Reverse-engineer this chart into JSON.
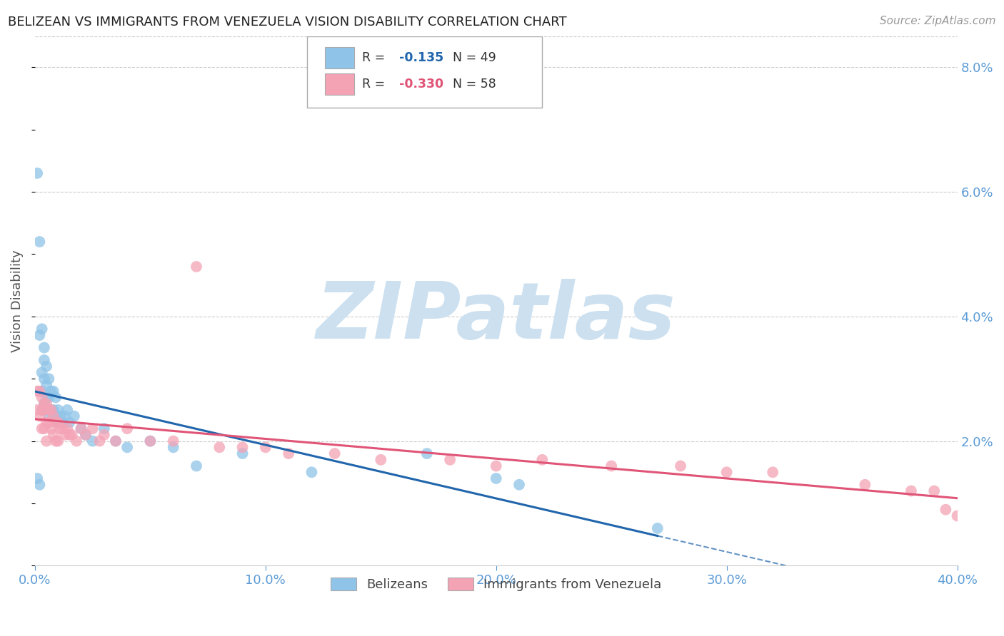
{
  "title": "BELIZEAN VS IMMIGRANTS FROM VENEZUELA VISION DISABILITY CORRELATION CHART",
  "source": "Source: ZipAtlas.com",
  "ylabel_left": "Vision Disability",
  "x_min": 0.0,
  "x_max": 0.4,
  "y_min": 0.0,
  "y_max": 0.085,
  "right_yticks": [
    0.02,
    0.04,
    0.06,
    0.08
  ],
  "right_yticklabels": [
    "2.0%",
    "4.0%",
    "6.0%",
    "8.0%"
  ],
  "x_ticks": [
    0.0,
    0.1,
    0.2,
    0.3,
    0.4
  ],
  "x_ticklabels": [
    "0.0%",
    "10.0%",
    "20.0%",
    "30.0%",
    "40.0%"
  ],
  "blue_x": [
    0.001,
    0.001,
    0.002,
    0.002,
    0.002,
    0.003,
    0.003,
    0.003,
    0.003,
    0.004,
    0.004,
    0.004,
    0.004,
    0.005,
    0.005,
    0.005,
    0.005,
    0.006,
    0.006,
    0.006,
    0.007,
    0.007,
    0.008,
    0.008,
    0.009,
    0.009,
    0.01,
    0.01,
    0.011,
    0.012,
    0.013,
    0.014,
    0.015,
    0.017,
    0.02,
    0.022,
    0.025,
    0.03,
    0.035,
    0.04,
    0.05,
    0.06,
    0.07,
    0.09,
    0.12,
    0.17,
    0.2,
    0.21,
    0.27
  ],
  "blue_y": [
    0.063,
    0.014,
    0.052,
    0.037,
    0.013,
    0.038,
    0.031,
    0.028,
    0.025,
    0.035,
    0.033,
    0.03,
    0.026,
    0.032,
    0.029,
    0.027,
    0.025,
    0.03,
    0.027,
    0.024,
    0.028,
    0.025,
    0.028,
    0.025,
    0.027,
    0.024,
    0.025,
    0.023,
    0.024,
    0.023,
    0.024,
    0.025,
    0.023,
    0.024,
    0.022,
    0.021,
    0.02,
    0.022,
    0.02,
    0.019,
    0.02,
    0.019,
    0.016,
    0.018,
    0.015,
    0.018,
    0.014,
    0.013,
    0.006
  ],
  "pink_x": [
    0.001,
    0.001,
    0.002,
    0.002,
    0.003,
    0.003,
    0.003,
    0.004,
    0.004,
    0.004,
    0.005,
    0.005,
    0.005,
    0.006,
    0.006,
    0.007,
    0.007,
    0.008,
    0.008,
    0.009,
    0.009,
    0.01,
    0.01,
    0.011,
    0.012,
    0.013,
    0.014,
    0.015,
    0.016,
    0.018,
    0.02,
    0.022,
    0.025,
    0.028,
    0.03,
    0.035,
    0.04,
    0.05,
    0.06,
    0.07,
    0.08,
    0.09,
    0.1,
    0.11,
    0.13,
    0.15,
    0.18,
    0.2,
    0.22,
    0.25,
    0.28,
    0.3,
    0.32,
    0.36,
    0.38,
    0.39,
    0.395,
    0.4
  ],
  "pink_y": [
    0.028,
    0.025,
    0.028,
    0.024,
    0.027,
    0.025,
    0.022,
    0.026,
    0.025,
    0.022,
    0.026,
    0.023,
    0.02,
    0.025,
    0.023,
    0.025,
    0.022,
    0.024,
    0.021,
    0.023,
    0.02,
    0.023,
    0.02,
    0.022,
    0.022,
    0.021,
    0.022,
    0.021,
    0.021,
    0.02,
    0.022,
    0.021,
    0.022,
    0.02,
    0.021,
    0.02,
    0.022,
    0.02,
    0.02,
    0.048,
    0.019,
    0.019,
    0.019,
    0.018,
    0.018,
    0.017,
    0.017,
    0.016,
    0.017,
    0.016,
    0.016,
    0.015,
    0.015,
    0.013,
    0.012,
    0.012,
    0.009,
    0.008
  ],
  "blue_scatter_color": "#8fc4e8",
  "pink_scatter_color": "#f4a3b5",
  "blue_line_color": "#2166ac",
  "pink_line_color": "#e05577",
  "watermark": "ZIPatlas",
  "watermark_color": "#cce0f0",
  "background_color": "#ffffff",
  "grid_color": "#cccccc",
  "title_color": "#222222",
  "right_tick_color": "#5b9bd5",
  "x_tick_color": "#5b9bd5"
}
